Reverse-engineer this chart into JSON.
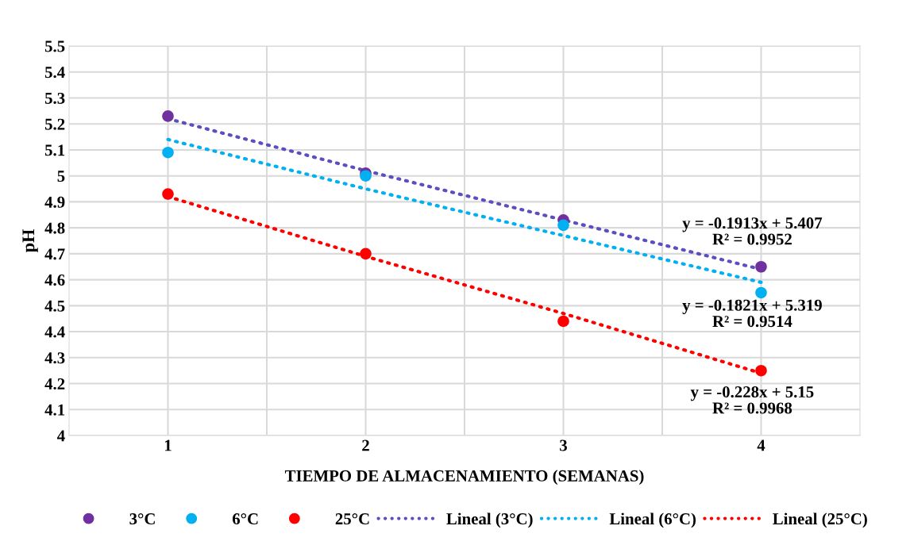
{
  "chart_data": {
    "type": "scatter",
    "xlabel": "TIEMPO DE ALMACENAMIENTO (SEMANAS)",
    "ylabel": "pH",
    "x": [
      1,
      2,
      3,
      4
    ],
    "series": [
      {
        "name": "3°C",
        "color": "#7030a0",
        "values": [
          5.23,
          5.01,
          4.83,
          4.65
        ]
      },
      {
        "name": "6°C",
        "color": "#00b0f0",
        "values": [
          5.09,
          5.0,
          4.81,
          4.55
        ]
      },
      {
        "name": "25°C",
        "color": "#ff0000",
        "values": [
          4.93,
          4.7,
          4.44,
          4.25
        ]
      },
      {
        "name": "Lineal (3°C)",
        "type": "line",
        "line_style": "dotted",
        "marker": "none",
        "color": "#5b4fc0",
        "values": [
          5.22,
          5.02,
          4.83,
          4.64
        ]
      },
      {
        "name": "Lineal (6°C)",
        "type": "line",
        "line_style": "dotted",
        "marker": "none",
        "color": "#00b0f0",
        "values": [
          5.14,
          4.95,
          4.77,
          4.59
        ]
      },
      {
        "name": "Lineal (25°C)",
        "type": "line",
        "line_style": "dotted",
        "marker": "none",
        "color": "#ff0000",
        "values": [
          4.92,
          4.69,
          4.47,
          4.24
        ]
      }
    ],
    "annotations": [
      "y = -0.1913x + 5.407\nR² = 0.9952",
      "y = -0.1821x + 5.319\nR² = 0.9514",
      "y = -0.228x + 5.15\nR² = 0.9968"
    ],
    "xlim": [
      0.5,
      4.5
    ],
    "xticks": [
      1,
      {
        "value": 1.5,
        "label": null
      },
      2,
      {
        "value": 2.5,
        "label": null
      },
      3,
      {
        "value": 3.5,
        "label": null
      },
      4
    ],
    "ylim": [
      4,
      5.5
    ],
    "yticks": [
      4,
      4.1,
      4.2,
      4.3,
      4.4,
      4.5,
      4.6,
      4.7,
      4.8,
      4.9,
      5,
      5.1,
      5.2,
      5.3,
      5.4,
      5.5
    ],
    "grid": true,
    "legend": "bottom",
    "marker": "circle"
  }
}
